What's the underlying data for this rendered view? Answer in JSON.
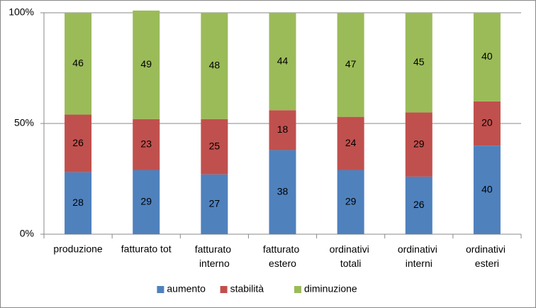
{
  "chart_data": {
    "type": "stacked_bar",
    "categories": [
      "produzione",
      "fatturato tot",
      "fatturato interno",
      "fatturato estero",
      "ordinativi totali",
      "ordinativi interni",
      "ordinativi esteri"
    ],
    "series": [
      {
        "name": "aumento",
        "color": "#4f81bd",
        "values": [
          28,
          29,
          27,
          38,
          29,
          26,
          40
        ]
      },
      {
        "name": "stabilità",
        "color": "#c0504d",
        "values": [
          26,
          23,
          25,
          18,
          24,
          29,
          20
        ]
      },
      {
        "name": "diminuzione",
        "color": "#9bbb59",
        "values": [
          46,
          49,
          48,
          44,
          47,
          45,
          40
        ]
      }
    ],
    "ylim": [
      0,
      100
    ],
    "yticks": [
      {
        "value": 0,
        "label": "0%"
      },
      {
        "value": 50,
        "label": "50%"
      },
      {
        "value": 100,
        "label": "100%"
      }
    ],
    "grid": true,
    "legend": "bottom"
  }
}
